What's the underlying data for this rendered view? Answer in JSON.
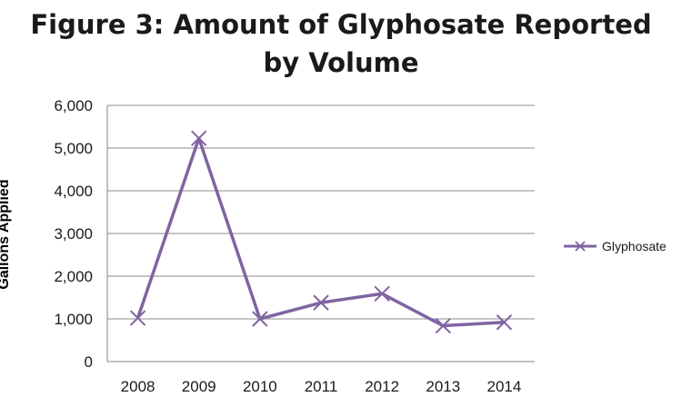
{
  "chart_data": {
    "type": "line",
    "title_line1": "Figure 3: Amount of Glyphosate Reported",
    "title_line2": "by Volume",
    "ylabel": "Gallons Applied",
    "xlabel": "",
    "categories": [
      "2008",
      "2009",
      "2010",
      "2011",
      "2012",
      "2013",
      "2014"
    ],
    "y_ticks": [
      0,
      1000,
      2000,
      3000,
      4000,
      5000,
      6000
    ],
    "y_tick_labels": [
      "0",
      "1,000",
      "2,000",
      "3,000",
      "4,000",
      "5,000",
      "6,000"
    ],
    "ylim": [
      0,
      6000
    ],
    "grid": true,
    "legend_position": "right",
    "series": [
      {
        "name": "Glyphosate",
        "color": "#8064a2",
        "marker": "x",
        "values": [
          1020,
          5230,
          1000,
          1380,
          1590,
          840,
          920
        ]
      }
    ]
  }
}
